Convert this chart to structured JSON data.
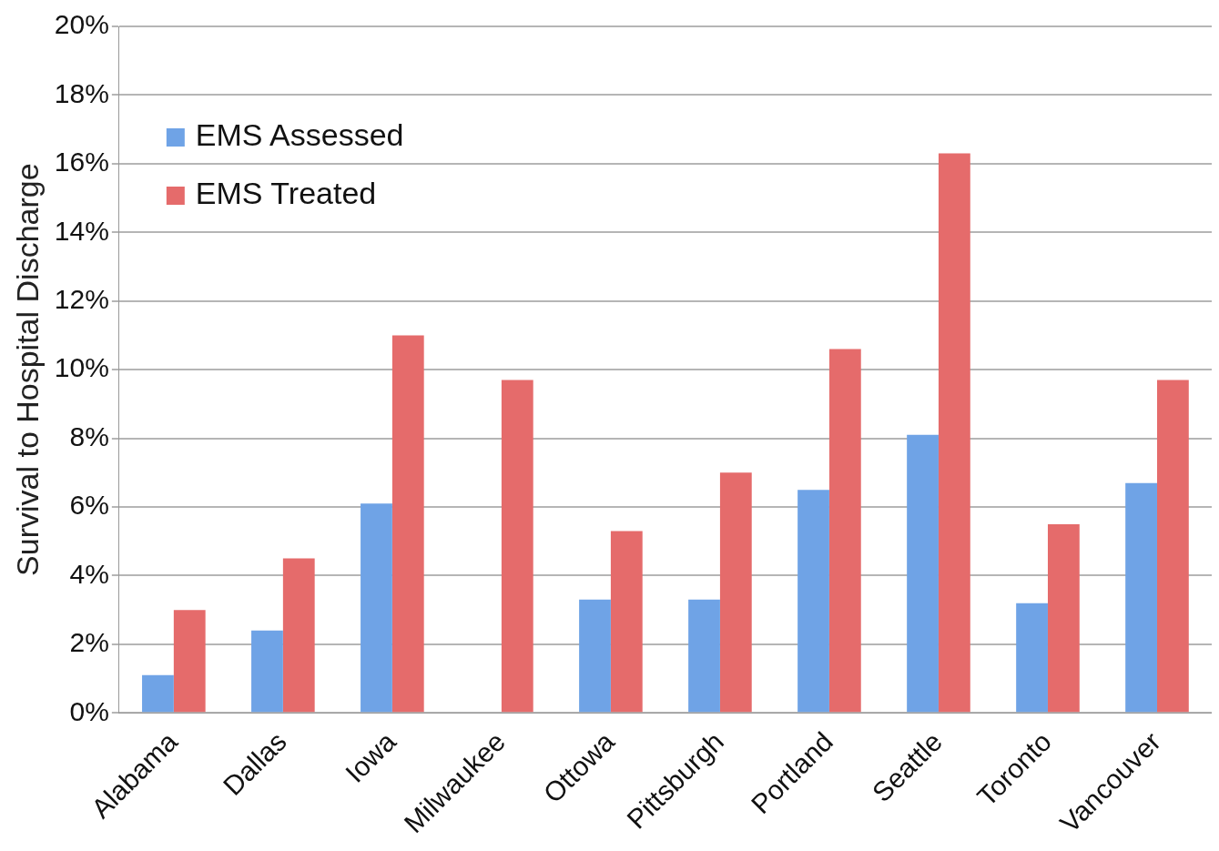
{
  "chart_data": {
    "type": "bar",
    "ylabel": "Survival to Hospital Discharge",
    "categories": [
      "Alabama",
      "Dallas",
      "Iowa",
      "Milwaukee",
      "Ottowa",
      "Pittsburgh",
      "Portland",
      "Seattle",
      "Toronto",
      "Vancouver"
    ],
    "series": [
      {
        "name": "EMS Assessed",
        "color": "#6fa3e6",
        "values": [
          1.1,
          2.4,
          6.1,
          null,
          3.3,
          3.3,
          6.5,
          8.1,
          3.2,
          6.7
        ]
      },
      {
        "name": "EMS Treated",
        "color": "#e56b6b",
        "values": [
          3.0,
          4.5,
          11.0,
          9.7,
          5.3,
          7.0,
          10.6,
          16.3,
          5.5,
          9.7
        ]
      }
    ],
    "ylim": [
      0,
      20
    ],
    "yticks": [
      {
        "value": 0,
        "label": "0%"
      },
      {
        "value": 2,
        "label": "2%"
      },
      {
        "value": 4,
        "label": "4%"
      },
      {
        "value": 6,
        "label": "6%"
      },
      {
        "value": 8,
        "label": "8%"
      },
      {
        "value": 10,
        "label": "10%"
      },
      {
        "value": 12,
        "label": "12%"
      },
      {
        "value": 14,
        "label": "14%"
      },
      {
        "value": 16,
        "label": "16%"
      },
      {
        "value": 18,
        "label": "18%"
      },
      {
        "value": 20,
        "label": "20%"
      }
    ],
    "grid": "y",
    "legend": "top left"
  }
}
